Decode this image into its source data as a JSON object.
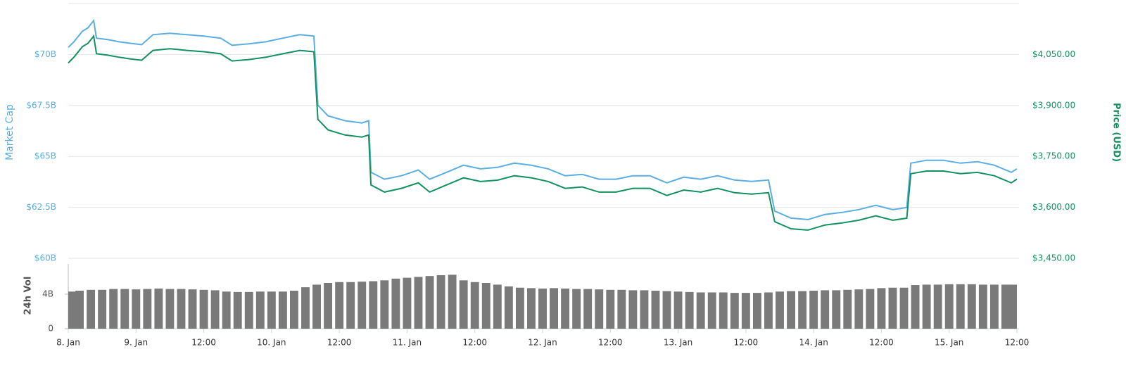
{
  "chart_data": [
    {
      "type": "line",
      "ylabel": "Market Cap",
      "y2label": "Price (USD)",
      "xlim": [
        12,
        180
      ],
      "ylim": [
        60,
        72.5
      ],
      "y2lim": [
        3450,
        4200
      ],
      "grid": true,
      "yticks": [
        {
          "value": 60,
          "label": "$60B"
        },
        {
          "value": 62.5,
          "label": "$62.5B"
        },
        {
          "value": 65,
          "label": "$65B"
        },
        {
          "value": 67.5,
          "label": "$67.5B"
        },
        {
          "value": 70,
          "label": "$70B"
        }
      ],
      "y2ticks": [
        {
          "value": 3450,
          "label": "$3,450.00"
        },
        {
          "value": 3600,
          "label": "$3,600.00"
        },
        {
          "value": 3750,
          "label": "$3,750.00"
        },
        {
          "value": 3900,
          "label": "$3,900.00"
        },
        {
          "value": 4050,
          "label": "$4,050.00"
        }
      ],
      "x": [
        12,
        13,
        14.5,
        15.5,
        16.5,
        17,
        19,
        21,
        23,
        25,
        27,
        30,
        33,
        36,
        39,
        41,
        44,
        47,
        50,
        53,
        55.5,
        56.2,
        58,
        61,
        64,
        65.2,
        65.6,
        68,
        71,
        74,
        76,
        79,
        82,
        85,
        88,
        91,
        94,
        97,
        100,
        103,
        106,
        109,
        112,
        115,
        118,
        121,
        124,
        127,
        130,
        133,
        136,
        137.1,
        140,
        143,
        146,
        149,
        152,
        155,
        158,
        160.5,
        161.2,
        164,
        167,
        170,
        173,
        176,
        179,
        180
      ],
      "series": [
        {
          "name": "Market Cap",
          "color": "#5aaee3",
          "values": [
            70.35,
            70.62,
            71.14,
            71.31,
            71.66,
            70.8,
            70.73,
            70.62,
            70.55,
            70.48,
            70.97,
            71.04,
            70.97,
            70.9,
            70.8,
            70.45,
            70.52,
            70.62,
            70.8,
            70.97,
            70.9,
            67.51,
            66.99,
            66.75,
            66.64,
            66.75,
            64.22,
            63.88,
            64.05,
            64.33,
            63.88,
            64.22,
            64.57,
            64.39,
            64.46,
            64.67,
            64.57,
            64.39,
            64.05,
            64.12,
            63.88,
            63.88,
            64.05,
            64.05,
            63.7,
            63.98,
            63.88,
            64.05,
            63.84,
            63.77,
            63.84,
            62.32,
            61.97,
            61.9,
            62.15,
            62.25,
            62.39,
            62.6,
            62.39,
            62.49,
            64.67,
            64.81,
            64.81,
            64.67,
            64.74,
            64.57,
            64.22,
            64.39
          ]
        },
        {
          "name": "Price (USD)",
          "color": "#13925f",
          "axis": "y2",
          "values": [
            4025,
            4042,
            4073,
            4083,
            4104,
            4052,
            4048,
            4042,
            4037,
            4033,
            4062,
            4067,
            4062,
            4058,
            4052,
            4031,
            4035,
            4042,
            4052,
            4062,
            4058,
            3859,
            3828,
            3813,
            3807,
            3813,
            3666,
            3645,
            3656,
            3672,
            3645,
            3666,
            3687,
            3676,
            3680,
            3693,
            3687,
            3676,
            3656,
            3660,
            3645,
            3645,
            3656,
            3656,
            3635,
            3651,
            3645,
            3656,
            3643,
            3639,
            3643,
            3558,
            3537,
            3533,
            3548,
            3554,
            3562,
            3575,
            3562,
            3568,
            3699,
            3707,
            3707,
            3699,
            3703,
            3693,
            3672,
            3683
          ]
        }
      ]
    },
    {
      "type": "bar",
      "ylabel": "24h Vol",
      "xlim": [
        12,
        180
      ],
      "ylim": [
        0,
        7.5
      ],
      "color": "#7a7a7a",
      "yticks": [
        0,
        {
          "value": 4,
          "label": "4B"
        }
      ],
      "xticks": [
        {
          "value": 12,
          "label": "8. Jan"
        },
        {
          "value": 24,
          "label": "9. Jan"
        },
        {
          "value": 36,
          "label": "12:00"
        },
        {
          "value": 48,
          "label": "10. Jan"
        },
        {
          "value": 60,
          "label": "12:00"
        },
        {
          "value": 72,
          "label": "11. Jan"
        },
        {
          "value": 84,
          "label": "12:00"
        },
        {
          "value": 96,
          "label": "12. Jan"
        },
        {
          "value": 108,
          "label": "12:00"
        },
        {
          "value": 120,
          "label": "13. Jan"
        },
        {
          "value": 132,
          "label": "12:00"
        },
        {
          "value": 144,
          "label": "14. Jan"
        },
        {
          "value": 156,
          "label": "12:00"
        },
        {
          "value": 168,
          "label": "15. Jan"
        },
        {
          "value": 180,
          "label": "12:00"
        }
      ],
      "x": [
        12,
        14,
        16,
        18,
        20,
        22,
        24,
        26,
        28,
        30,
        32,
        34,
        36,
        38,
        40,
        42,
        44,
        46,
        48,
        50,
        52,
        54,
        56,
        58,
        60,
        62,
        64,
        66,
        68,
        70,
        72,
        74,
        76,
        78,
        80,
        82,
        84,
        86,
        88,
        90,
        92,
        94,
        96,
        98,
        100,
        102,
        104,
        106,
        108,
        110,
        112,
        114,
        116,
        118,
        120,
        122,
        124,
        126,
        128,
        130,
        132,
        134,
        136,
        138,
        140,
        142,
        144,
        146,
        148,
        150,
        152,
        154,
        156,
        158,
        160,
        162,
        164,
        166,
        168,
        170,
        172,
        174,
        176,
        178,
        180
      ],
      "values": [
        4.3,
        4.4,
        4.5,
        4.5,
        4.6,
        4.6,
        4.55,
        4.6,
        4.65,
        4.6,
        4.6,
        4.55,
        4.5,
        4.45,
        4.3,
        4.25,
        4.25,
        4.3,
        4.3,
        4.3,
        4.4,
        4.8,
        5.1,
        5.3,
        5.4,
        5.4,
        5.45,
        5.5,
        5.6,
        5.8,
        5.9,
        6.0,
        6.1,
        6.2,
        6.25,
        5.6,
        5.4,
        5.3,
        5.1,
        4.9,
        4.75,
        4.7,
        4.65,
        4.7,
        4.65,
        4.6,
        4.6,
        4.55,
        4.5,
        4.5,
        4.45,
        4.45,
        4.4,
        4.35,
        4.3,
        4.25,
        4.2,
        4.2,
        4.2,
        4.15,
        4.15,
        4.15,
        4.2,
        4.3,
        4.35,
        4.35,
        4.4,
        4.45,
        4.45,
        4.5,
        4.55,
        4.6,
        4.7,
        4.75,
        4.75,
        5.05,
        5.1,
        5.1,
        5.15,
        5.15,
        5.15,
        5.1,
        5.1,
        5.1,
        5.1
      ]
    }
  ]
}
